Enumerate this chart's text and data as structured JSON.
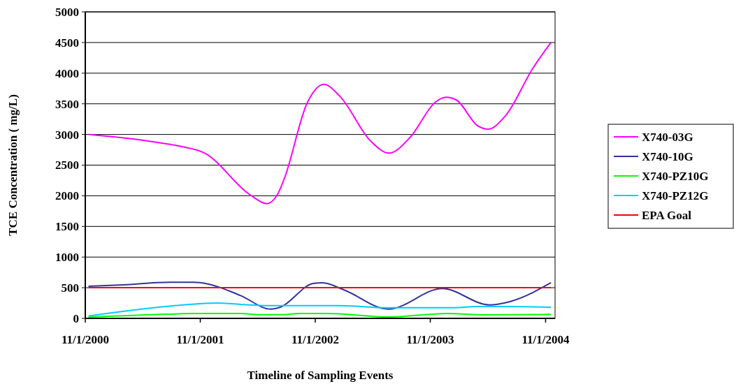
{
  "chart_data": {
    "type": "line",
    "xlabel": "Timeline of Sampling Events",
    "ylabel": "TCE Concentration ( mg/L)",
    "xlim": [
      "2000-11-01",
      "2004-12-01"
    ],
    "xticks": [
      {
        "value": "2000-11-01",
        "label": "11/1/2000"
      },
      {
        "value": "2001-11-01",
        "label": "11/1/2001"
      },
      {
        "value": "2002-11-01",
        "label": "11/1/2002"
      },
      {
        "value": "2003-11-01",
        "label": "11/1/2003"
      },
      {
        "value": "2004-11-01",
        "label": "11/1/2004"
      }
    ],
    "ylim": [
      0,
      5000
    ],
    "yticks": [
      0,
      500,
      1000,
      1500,
      2000,
      2500,
      3000,
      3500,
      4000,
      4500,
      5000
    ],
    "grid": "y",
    "legend": "right",
    "line_style": "solid",
    "marker": "none",
    "series": [
      {
        "name": "X740-03G",
        "color": "#ff00ff",
        "x": [
          "2000-11-12",
          "2001-05-30",
          "2001-08-27",
          "2001-11-15",
          "2002-04-08",
          "2002-05-31",
          "2002-07-03",
          "2002-07-25",
          "2002-10-07",
          "2002-11-28",
          "2003-01-19",
          "2003-04-25",
          "2003-06-23",
          "2003-08-29",
          "2003-11-18",
          "2003-12-21",
          "2004-01-23",
          "2004-03-30",
          "2004-05-02",
          "2004-06-25",
          "2004-09-23",
          "2004-11-18"
        ],
        "values": [
          3000,
          2885,
          2810,
          2696,
          2016,
          1871,
          2012,
          2270,
          3523,
          3819,
          3618,
          2897,
          2696,
          2953,
          3531,
          3607,
          3562,
          3143,
          3087,
          3295,
          4092,
          4500
        ]
      },
      {
        "name": "X740-10G",
        "color": "#333399",
        "x": [
          "2000-11-11",
          "2001-02-16",
          "2001-07-29",
          "2001-10-11",
          "2001-11-25",
          "2002-03-09",
          "2002-06-13",
          "2002-07-13",
          "2002-10-25",
          "2002-11-24",
          "2003-01-30",
          "2003-06-21",
          "2003-12-09",
          "2004-05-07",
          "2004-07-13",
          "2004-11-18"
        ],
        "values": [
          524,
          543,
          589,
          589,
          562,
          372,
          151,
          182,
          569,
          581,
          467,
          151,
          486,
          220,
          277,
          581
        ]
      },
      {
        "name": "X740-PZ10G",
        "color": "#00ff00",
        "x": [
          "2000-11-11",
          "2001-07-14",
          "2001-10-11",
          "2002-03-09",
          "2002-05-06",
          "2002-07-19",
          "2002-09-10",
          "2002-12-09",
          "2003-06-21",
          "2003-12-24",
          "2004-04-22",
          "2004-11-18"
        ],
        "values": [
          23,
          68,
          80,
          80,
          60,
          60,
          80,
          80,
          23,
          80,
          57,
          65
        ]
      },
      {
        "name": "X740-PZ12G",
        "color": "#00ccff",
        "x": [
          "2000-11-11",
          "2001-08-27",
          "2001-12-25",
          "2002-03-09",
          "2002-06-13",
          "2003-01-14",
          "2003-06-21",
          "2004-01-16",
          "2004-03-29",
          "2004-07-13",
          "2004-11-18"
        ],
        "values": [
          38,
          213,
          251,
          228,
          209,
          209,
          174,
          174,
          194,
          194,
          179
        ]
      },
      {
        "name": "EPA Goal",
        "color": "#ff0000",
        "x": [
          "2000-11-12",
          "2004-11-18"
        ],
        "values": [
          500,
          500
        ]
      }
    ]
  }
}
